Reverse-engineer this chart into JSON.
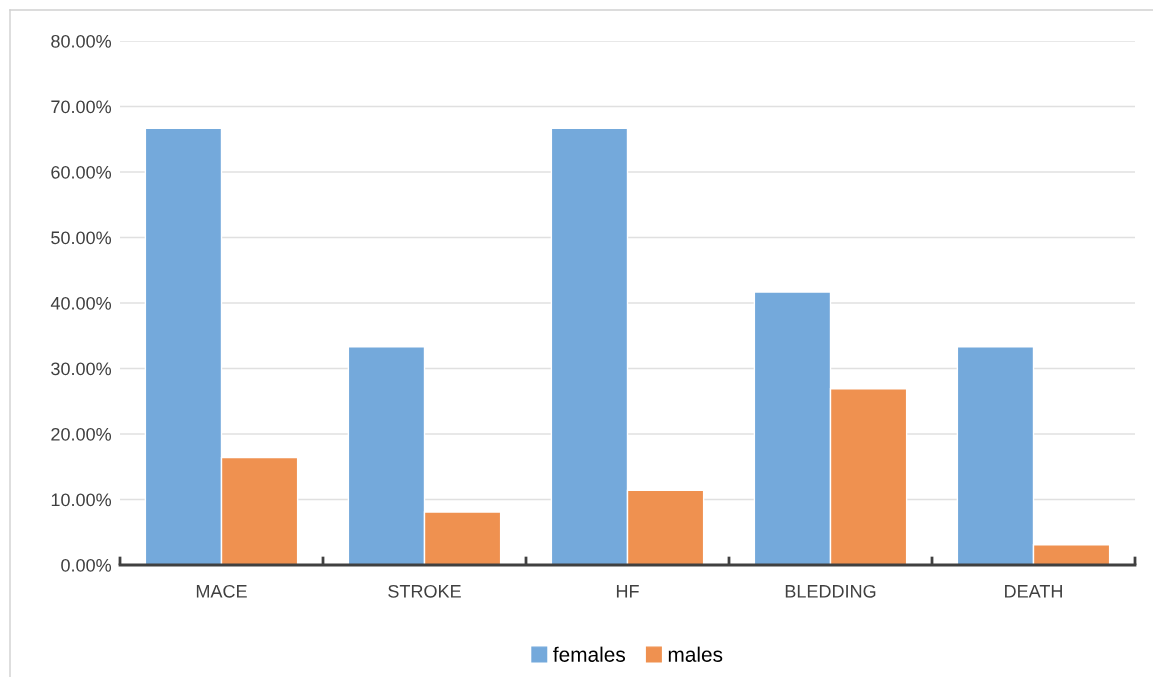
{
  "chart_data": {
    "type": "bar",
    "categories": [
      "MACE",
      "STROKE",
      "HF",
      "BLEDDING",
      "DEATH"
    ],
    "series": [
      {
        "name": "females",
        "color": "#74a9db",
        "values": [
          66.67,
          33.33,
          66.67,
          41.67,
          33.33
        ]
      },
      {
        "name": "males",
        "color": "#ef9150",
        "values": [
          16.4,
          8.1,
          11.4,
          26.9,
          3.1
        ]
      }
    ],
    "ylim": [
      0,
      80
    ],
    "yticks": [
      {
        "value": 0,
        "label": "0.00%"
      },
      {
        "value": 10,
        "label": "10.00%"
      },
      {
        "value": 20,
        "label": "20.00%"
      },
      {
        "value": 30,
        "label": "30.00%"
      },
      {
        "value": 40,
        "label": "40.00%"
      },
      {
        "value": 50,
        "label": "50.00%"
      },
      {
        "value": 60,
        "label": "60.00%"
      },
      {
        "value": 70,
        "label": "70.00%"
      },
      {
        "value": 80,
        "label": "80.00%"
      }
    ],
    "grid": "y",
    "legend": "bottom"
  }
}
